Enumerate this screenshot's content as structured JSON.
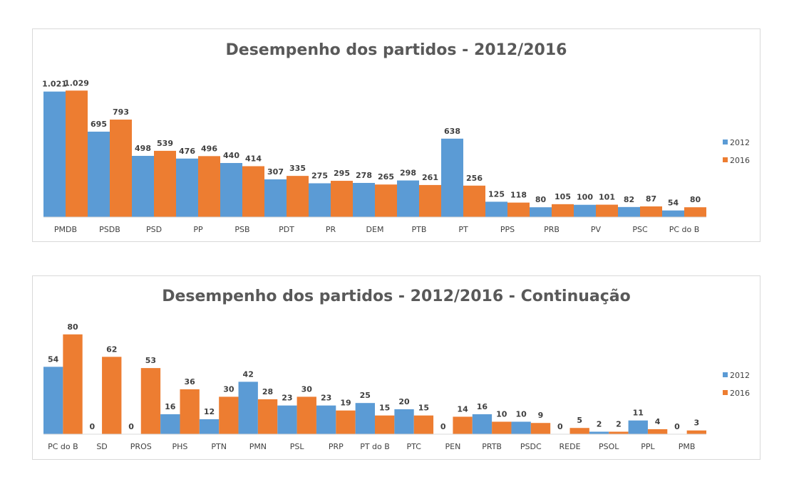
{
  "colors": {
    "series_2012": "#5b9bd5",
    "series_2016": "#ed7d31",
    "axis": "#d9d9d9"
  },
  "chart_data": [
    {
      "type": "bar",
      "title": "Desempenho dos partidos - 2012/2016",
      "categories": [
        "PMDB",
        "PSDB",
        "PSD",
        "PP",
        "PSB",
        "PDT",
        "PR",
        "DEM",
        "PTB",
        "PT",
        "PPS",
        "PRB",
        "PV",
        "PSC",
        "PC do B"
      ],
      "series": [
        {
          "name": "2012",
          "values": [
            1021,
            695,
            498,
            476,
            440,
            307,
            275,
            278,
            298,
            638,
            125,
            80,
            100,
            82,
            54
          ],
          "labels": [
            "1.021",
            "695",
            "498",
            "476",
            "440",
            "307",
            "275",
            "278",
            "298",
            "638",
            "125",
            "80",
            "100",
            "82",
            "54"
          ]
        },
        {
          "name": "2016",
          "values": [
            1029,
            793,
            539,
            496,
            414,
            335,
            295,
            265,
            261,
            256,
            118,
            105,
            101,
            87,
            80
          ],
          "labels": [
            "1.029",
            "793",
            "539",
            "496",
            "414",
            "335",
            "295",
            "265",
            "261",
            "256",
            "118",
            "105",
            "101",
            "87",
            "80"
          ]
        }
      ],
      "ylim": [
        0,
        1100
      ],
      "grid": false,
      "legend": "right"
    },
    {
      "type": "bar",
      "title": "Desempenho dos partidos - 2012/2016 - Continuação",
      "categories": [
        "PC do B",
        "SD",
        "PROS",
        "PHS",
        "PTN",
        "PMN",
        "PSL",
        "PRP",
        "PT do B",
        "PTC",
        "PEN",
        "PRTB",
        "PSDC",
        "REDE",
        "PSOL",
        "PPL",
        "PMB"
      ],
      "series": [
        {
          "name": "2012",
          "values": [
            54,
            0,
            0,
            16,
            12,
            42,
            23,
            23,
            25,
            20,
            0,
            16,
            10,
            0,
            2,
            11,
            0
          ],
          "labels": [
            "54",
            "0",
            "0",
            "16",
            "12",
            "42",
            "23",
            "23",
            "25",
            "20",
            "0",
            "16",
            "10",
            "0",
            "2",
            "11",
            "0"
          ]
        },
        {
          "name": "2016",
          "values": [
            80,
            62,
            53,
            36,
            30,
            28,
            30,
            19,
            15,
            15,
            14,
            10,
            9,
            5,
            2,
            4,
            3
          ],
          "labels": [
            "80",
            "62",
            "53",
            "36",
            "30",
            "28",
            "30",
            "19",
            "15",
            "15",
            "14",
            "10",
            "9",
            "5",
            "2",
            "4",
            "3"
          ]
        }
      ],
      "ylim": [
        0,
        85
      ],
      "grid": false,
      "legend": "right"
    }
  ]
}
